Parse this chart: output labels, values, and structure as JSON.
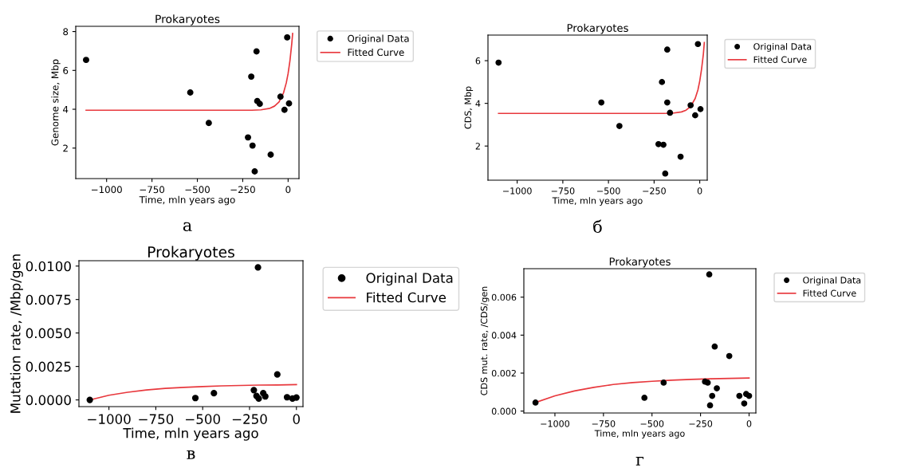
{
  "chart_data": [
    {
      "type": "scatter",
      "title": "Prokaryotes",
      "xlabel": "Time, mln years ago",
      "ylabel": "Genome size, Mbp",
      "xlim": [
        -1170,
        60
      ],
      "ylim": [
        0.43,
        8.27
      ],
      "xticks": [
        {
          "value": -1000,
          "label": "−1000"
        },
        {
          "value": -750,
          "label": "−750"
        },
        {
          "value": -500,
          "label": "−500"
        },
        {
          "value": -250,
          "label": "−250"
        },
        0
      ],
      "yticks": [
        2,
        4,
        6,
        8
      ],
      "legend": "right",
      "annotations": [
        "а"
      ],
      "series": [
        {
          "name": "Original Data",
          "type": "scatter",
          "marker": "circle",
          "color": "#000000",
          "x": [
            -1113,
            -539,
            -437,
            -221,
            -196,
            -174,
            -203,
            -184,
            -170,
            -156,
            -96,
            -42,
            -20,
            -5,
            5
          ],
          "values": [
            6.54,
            4.86,
            3.29,
            2.55,
            2.13,
            6.98,
            5.68,
            0.8,
            4.42,
            4.28,
            1.66,
            4.65,
            3.97,
            7.7,
            4.3
          ]
        },
        {
          "name": "Fitted Curve",
          "type": "line",
          "color": "#e8383d",
          "x": [
            -1113,
            -200,
            -150,
            -100,
            -75,
            -50,
            -25,
            -10,
            0,
            10,
            20,
            25
          ],
          "values": [
            3.95,
            3.95,
            3.97,
            4.05,
            4.16,
            4.38,
            4.85,
            5.36,
            5.84,
            6.49,
            7.36,
            7.9
          ]
        }
      ]
    },
    {
      "type": "scatter",
      "title": "Prokaryotes",
      "xlabel": "Time, mln years ago",
      "ylabel": "CDS, Mbp",
      "xlim": [
        -1160,
        41
      ],
      "ylim": [
        0.4,
        7.2
      ],
      "xticks": [
        {
          "value": -1000,
          "label": "−1000"
        },
        {
          "value": -750,
          "label": "−750"
        },
        {
          "value": -500,
          "label": "−500"
        },
        {
          "value": -250,
          "label": "−250"
        },
        0
      ],
      "yticks": [
        2,
        4,
        6
      ],
      "legend": "right",
      "annotations": [
        "б"
      ],
      "series": [
        {
          "name": "Original Data",
          "type": "scatter",
          "marker": "circle",
          "color": "#000000",
          "x": [
            -1102,
            -539,
            -440,
            -226,
            -199,
            -207,
            -178,
            -178,
            -189,
            -163,
            -105,
            -50,
            -25,
            -10,
            4
          ],
          "values": [
            5.91,
            4.04,
            2.94,
            2.09,
            2.06,
            5.0,
            6.52,
            4.04,
            0.71,
            3.56,
            1.5,
            3.91,
            3.44,
            6.78,
            3.73
          ]
        },
        {
          "name": "Fitted Curve",
          "type": "line",
          "color": "#e8383d",
          "x": [
            -1102,
            -200,
            -150,
            -100,
            -75,
            -50,
            -25,
            -10,
            0,
            10,
            20,
            25
          ],
          "values": [
            3.53,
            3.53,
            3.54,
            3.6,
            3.68,
            3.85,
            4.23,
            4.63,
            5.05,
            5.61,
            6.32,
            6.85
          ]
        }
      ]
    },
    {
      "type": "scatter",
      "title": "Prokaryotes",
      "xlabel": "Time, mln years ago",
      "ylabel": "Mutation rate, /Mbp/gen",
      "xlim": [
        -1160,
        35
      ],
      "ylim": [
        -0.0005,
        0.0104
      ],
      "xticks": [
        {
          "value": -1000,
          "label": "−1000"
        },
        {
          "value": -750,
          "label": "−750"
        },
        {
          "value": -500,
          "label": "−500"
        },
        {
          "value": -250,
          "label": "−250"
        },
        0
      ],
      "yticks": [
        {
          "value": 0,
          "label": "0.0000"
        },
        {
          "value": 0.0025,
          "label": "0.0025"
        },
        {
          "value": 0.005,
          "label": "0.0050"
        },
        {
          "value": 0.0075,
          "label": "0.0075"
        },
        {
          "value": 0.01,
          "label": "0.0100"
        }
      ],
      "legend": "right",
      "annotations": [
        "в"
      ],
      "series": [
        {
          "name": "Original Data",
          "type": "scatter",
          "marker": "circle",
          "color": "#000000",
          "x": [
            -1102,
            -539,
            -440,
            -227,
            -213,
            -205,
            -201,
            -177,
            -166,
            -102,
            -50,
            -21,
            0
          ],
          "values": [
            0.0,
            0.00014,
            0.0005,
            0.00073,
            0.0003,
            0.0099,
            0.0001,
            0.0005,
            0.00026,
            0.0019,
            0.0002,
            0.0001,
            0.00018
          ]
        },
        {
          "name": "Fitted Curve",
          "type": "line",
          "color": "#e8383d",
          "x": [
            -1100,
            -1000,
            -900,
            -800,
            -700,
            -600,
            -500,
            -400,
            -300,
            -200,
            -100,
            0
          ],
          "values": [
            0.0,
            0.00035,
            0.00057,
            0.00074,
            0.00086,
            0.00094,
            0.001,
            0.00105,
            0.00108,
            0.00111,
            0.00112,
            0.00114
          ]
        }
      ]
    },
    {
      "type": "scatter",
      "title": "Prokaryotes",
      "xlabel": "Time, mln years ago",
      "ylabel": "CDS mut. rate, /CDS/gen",
      "xlim": [
        -1160,
        35
      ],
      "ylim": [
        -0.0001,
        0.0075
      ],
      "xticks": [
        {
          "value": -1000,
          "label": "−1000"
        },
        {
          "value": -750,
          "label": "−750"
        },
        {
          "value": -500,
          "label": "−500"
        },
        {
          "value": -250,
          "label": "−250"
        },
        0
      ],
      "yticks": [
        {
          "value": 0,
          "label": "0.000"
        },
        {
          "value": 0.002,
          "label": "0.002"
        },
        {
          "value": 0.004,
          "label": "0.004"
        },
        {
          "value": 0.006,
          "label": "0.006"
        }
      ],
      "legend": "right",
      "annotations": [
        "г"
      ],
      "series": [
        {
          "name": "Original Data",
          "type": "scatter",
          "marker": "circle",
          "color": "#000000",
          "x": [
            -1100,
            -539,
            -440,
            -227,
            -213,
            -205,
            -201,
            -190,
            -177,
            -166,
            -102,
            -50,
            -25,
            -15,
            0
          ],
          "values": [
            0.00045,
            0.0007,
            0.0015,
            0.00155,
            0.0015,
            0.0072,
            0.0003,
            0.0008,
            0.0034,
            0.0012,
            0.0029,
            0.0008,
            0.0004,
            0.0009,
            0.0008
          ]
        },
        {
          "name": "Fitted Curve",
          "type": "line",
          "color": "#e8383d",
          "x": [
            -1100,
            -1000,
            -900,
            -800,
            -700,
            -600,
            -500,
            -400,
            -300,
            -200,
            -100,
            0
          ],
          "values": [
            0.00045,
            0.0008,
            0.00106,
            0.00125,
            0.0014,
            0.0015,
            0.00157,
            0.00163,
            0.00167,
            0.0017,
            0.00172,
            0.00174
          ]
        }
      ]
    }
  ]
}
